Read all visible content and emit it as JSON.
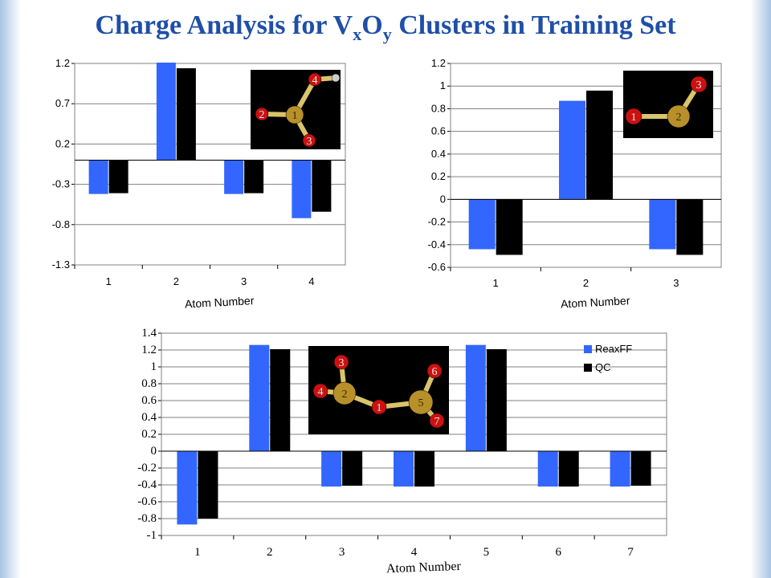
{
  "page": {
    "title_parts": [
      "Charge Analysis for V",
      "x",
      "O",
      "y",
      " Clusters in Training Set"
    ]
  },
  "colors": {
    "reaxff": "#3366ff",
    "qc": "#000000",
    "title": "#1f4fa8",
    "vanadium": "#b8902a",
    "oxygen": "#cc1111",
    "hydrogen": "#cccccc"
  },
  "chart_data": [
    {
      "type": "bar",
      "categories": [
        "1",
        "2",
        "3",
        "4"
      ],
      "series": [
        {
          "name": "ReaxFF",
          "values": [
            -0.42,
            1.21,
            -0.42,
            -0.72
          ]
        },
        {
          "name": "QC",
          "values": [
            -0.41,
            1.14,
            -0.41,
            -0.64
          ]
        }
      ],
      "xlabel": "Atom Number",
      "ylim": [
        -1.3,
        1.2
      ],
      "yticks": [
        "1.2",
        "0.7",
        "0.2",
        "-0.3",
        "-0.8",
        "-1.3"
      ],
      "grid": true,
      "inset": {
        "atoms": [
          {
            "label": "1",
            "element": "V"
          },
          {
            "label": "2",
            "element": "O"
          },
          {
            "label": "3",
            "element": "O"
          },
          {
            "label": "4",
            "element": "O"
          },
          {
            "label": "",
            "element": "H"
          }
        ]
      }
    },
    {
      "type": "bar",
      "categories": [
        "1",
        "2",
        "3"
      ],
      "series": [
        {
          "name": "ReaxFF",
          "values": [
            -0.44,
            0.87,
            -0.44
          ]
        },
        {
          "name": "QC",
          "values": [
            -0.49,
            0.96,
            -0.49
          ]
        }
      ],
      "xlabel": "Atom Number",
      "ylim": [
        -0.6,
        1.2
      ],
      "yticks": [
        "1.2",
        "1",
        "0.8",
        "0.6",
        "0.4",
        "0.2",
        "0",
        "-0.2",
        "-0.4",
        "-0.6"
      ],
      "grid": true,
      "inset": {
        "atoms": [
          {
            "label": "1",
            "element": "O"
          },
          {
            "label": "2",
            "element": "V"
          },
          {
            "label": "3",
            "element": "O"
          }
        ]
      }
    },
    {
      "type": "bar",
      "categories": [
        "1",
        "2",
        "3",
        "4",
        "5",
        "6",
        "7"
      ],
      "series": [
        {
          "name": "ReaxFF",
          "values": [
            -0.87,
            1.26,
            -0.42,
            -0.42,
            1.26,
            -0.42,
            -0.42
          ]
        },
        {
          "name": "QC",
          "values": [
            -0.8,
            1.21,
            -0.41,
            -0.42,
            1.21,
            -0.42,
            -0.41
          ]
        }
      ],
      "xlabel": "Atom Number",
      "ylim": [
        -1,
        1.4
      ],
      "yticks": [
        "1.4",
        "1.2",
        "1",
        "0.8",
        "0.6",
        "0.4",
        "0.2",
        "0",
        "-0.2",
        "-0.4",
        "-0.6",
        "-0.8",
        "-1"
      ],
      "grid": true,
      "legend": {
        "position": "top-right",
        "entries": [
          "ReaxFF",
          "QC"
        ]
      },
      "inset": {
        "atoms": [
          {
            "label": "1",
            "element": "O"
          },
          {
            "label": "2",
            "element": "V"
          },
          {
            "label": "3",
            "element": "O"
          },
          {
            "label": "4",
            "element": "O"
          },
          {
            "label": "5",
            "element": "V"
          },
          {
            "label": "6",
            "element": "O"
          },
          {
            "label": "7",
            "element": "O"
          }
        ]
      }
    }
  ]
}
